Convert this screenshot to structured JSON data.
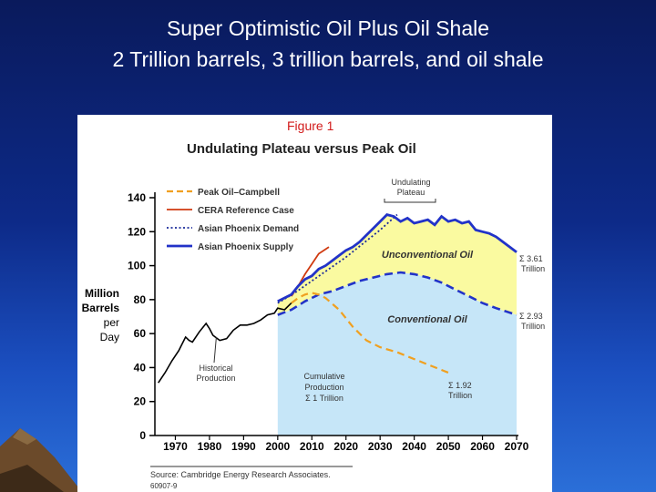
{
  "slide": {
    "title_line1": "Super Optimistic Oil Plus Oil Shale",
    "title_line2": "2 Trillion barrels, 3 trillion barrels, and oil shale"
  },
  "chart_data": {
    "type": "line",
    "figure_label": "Figure 1",
    "title": "Undulating Plateau versus Peak Oil",
    "ylabel_lines": [
      "Million",
      "Barrels",
      "per",
      "Day"
    ],
    "xlabel": "",
    "xlim": [
      1964,
      2070
    ],
    "ylim": [
      0,
      140
    ],
    "x_ticks": [
      1970,
      1980,
      1990,
      2000,
      2010,
      2020,
      2030,
      2040,
      2050,
      2060,
      2070
    ],
    "y_ticks": [
      0,
      20,
      40,
      60,
      80,
      100,
      120,
      140
    ],
    "grid": false,
    "legend_position": "top-left",
    "colors": {
      "peak_oil": "#f0a020",
      "cera": "#d03a10",
      "demand": "#1a2a9a",
      "supply": "#2233c8",
      "historical": "#000000",
      "conventional_fill": "#c6e6f8",
      "unconventional_fill": "#fafaa0",
      "figure_label": "#d21a1a"
    },
    "legend": [
      {
        "label": "Peak Oil–Campbell",
        "style": "dashed",
        "color": "#f0a020"
      },
      {
        "label": "CERA Reference Case",
        "style": "solid",
        "color": "#d03a10"
      },
      {
        "label": "Asian Phoenix Demand",
        "style": "dotted",
        "color": "#1a2a9a"
      },
      {
        "label": "Asian Phoenix Supply",
        "style": "solid-thick",
        "color": "#2233c8"
      }
    ],
    "series": [
      {
        "name": "Historical Production",
        "x": [
          1965,
          1967,
          1969,
          1971,
          1973,
          1974,
          1975,
          1977,
          1979,
          1980,
          1981,
          1983,
          1985,
          1987,
          1989,
          1991,
          1993,
          1995,
          1997,
          1999,
          2000,
          2002,
          2004
        ],
        "y": [
          31,
          37,
          44,
          50,
          58,
          56,
          55,
          61,
          66,
          63,
          59,
          56,
          57,
          62,
          65,
          65,
          66,
          68,
          71,
          72,
          75,
          74,
          78
        ]
      },
      {
        "name": "Peak Oil–Campbell",
        "x": [
          2004,
          2006,
          2008,
          2010,
          2012,
          2014,
          2018,
          2022,
          2026,
          2030,
          2035,
          2040,
          2045,
          2050
        ],
        "y": [
          78,
          81,
          83,
          84,
          83,
          81,
          74,
          64,
          56,
          52,
          49,
          45,
          41,
          37
        ]
      },
      {
        "name": "CERA Reference Case",
        "x": [
          2004,
          2006,
          2008,
          2010,
          2012,
          2015
        ],
        "y": [
          82,
          88,
          95,
          101,
          107,
          111
        ]
      },
      {
        "name": "Asian Phoenix Demand",
        "x": [
          2000,
          2005,
          2010,
          2015,
          2020,
          2025,
          2030,
          2035
        ],
        "y": [
          78,
          84,
          91,
          98,
          105,
          113,
          121,
          130
        ]
      },
      {
        "name": "Asian Phoenix Supply",
        "x": [
          2000,
          2004,
          2006,
          2008,
          2010,
          2012,
          2014,
          2016,
          2018,
          2020,
          2022,
          2024,
          2026,
          2028,
          2030,
          2032,
          2034,
          2036,
          2038,
          2040,
          2042,
          2044,
          2046,
          2048,
          2050,
          2052,
          2054,
          2056,
          2058,
          2060,
          2062,
          2064,
          2066,
          2068,
          2070
        ],
        "y": [
          79,
          83,
          88,
          92,
          94,
          98,
          100,
          103,
          106,
          109,
          111,
          114,
          118,
          122,
          126,
          130,
          129,
          126,
          128,
          125,
          126,
          127,
          124,
          129,
          126,
          127,
          125,
          126,
          121,
          120,
          119,
          117,
          114,
          111,
          108
        ]
      },
      {
        "name": "Conventional Oil",
        "x": [
          2000,
          2004,
          2008,
          2012,
          2016,
          2020,
          2024,
          2028,
          2032,
          2036,
          2040,
          2044,
          2048,
          2052,
          2056,
          2060,
          2064,
          2070
        ],
        "y": [
          71,
          74,
          79,
          83,
          85,
          88,
          91,
          93,
          95,
          96,
          95,
          93,
          90,
          86,
          82,
          78,
          75,
          71
        ]
      }
    ],
    "annotations": {
      "undulating_plateau": [
        "Undulating",
        "Plateau"
      ],
      "unconventional_oil": "Unconventional Oil",
      "conventional_oil": "Conventional Oil",
      "historical_production": [
        "Historical",
        "Production"
      ],
      "cumulative_production": [
        "Cumulative",
        "Production",
        "Σ 1 Trillion"
      ],
      "sum_361": [
        "Σ 3.61",
        "Trillion"
      ],
      "sum_293": [
        "Σ 2.93",
        "Trillion"
      ],
      "sum_192": [
        "Σ 1.92",
        "Trillion"
      ]
    },
    "source": "Source: Cambridge Energy Research Associates.",
    "code": "60907-9"
  }
}
